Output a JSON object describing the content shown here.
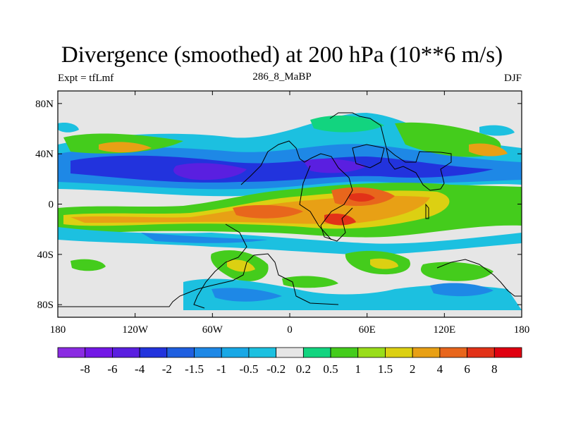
{
  "chart_data": {
    "type": "filled-contour-map",
    "title": "Divergence (smoothed) at 200 hPa (10**6 m/s)",
    "subtitle_left": "Expt = tfLmf",
    "subtitle_center": "286_8_MaBP",
    "subtitle_right": "DJF",
    "x_ticks": [
      {
        "value": -180,
        "label": "180"
      },
      {
        "value": -120,
        "label": "120W"
      },
      {
        "value": -60,
        "label": "60W"
      },
      {
        "value": 0,
        "label": "0"
      },
      {
        "value": 60,
        "label": "60E"
      },
      {
        "value": 120,
        "label": "120E"
      },
      {
        "value": 180,
        "label": "180"
      }
    ],
    "y_ticks": [
      {
        "value": 80,
        "label": "80N"
      },
      {
        "value": 40,
        "label": "40N"
      },
      {
        "value": 0,
        "label": "0"
      },
      {
        "value": -40,
        "label": "40S"
      },
      {
        "value": -80,
        "label": "80S"
      }
    ],
    "xlim": [
      -180,
      180
    ],
    "ylim": [
      -90,
      90
    ],
    "levels": [
      "-8",
      "-6",
      "-4",
      "-2",
      "-1.5",
      "-1",
      "-0.5",
      "-0.2",
      "0.2",
      "0.5",
      "1",
      "1.5",
      "2",
      "4",
      "6",
      "8"
    ],
    "colors": [
      "#8a2be2",
      "#7318e6",
      "#5a1fe0",
      "#2233dd",
      "#1f5fe0",
      "#1e88e6",
      "#18a8e6",
      "#1cc0e0",
      "#e6e6e6",
      "#12d47f",
      "#44cc1c",
      "#99dd1a",
      "#dcd012",
      "#e8a015",
      "#e8661c",
      "#e23218",
      "#e00010"
    ],
    "features": [
      {
        "lon": -110,
        "lat": 28,
        "value": -6
      },
      {
        "lon": -40,
        "lat": 30,
        "value": -4
      },
      {
        "lon": 55,
        "lat": 0,
        "value": 6
      },
      {
        "lon": -160,
        "lat": -22,
        "value": 2
      },
      {
        "lon": -20,
        "lat": -15,
        "value": 4
      },
      {
        "lon": 130,
        "lat": 45,
        "value": 2
      }
    ]
  }
}
